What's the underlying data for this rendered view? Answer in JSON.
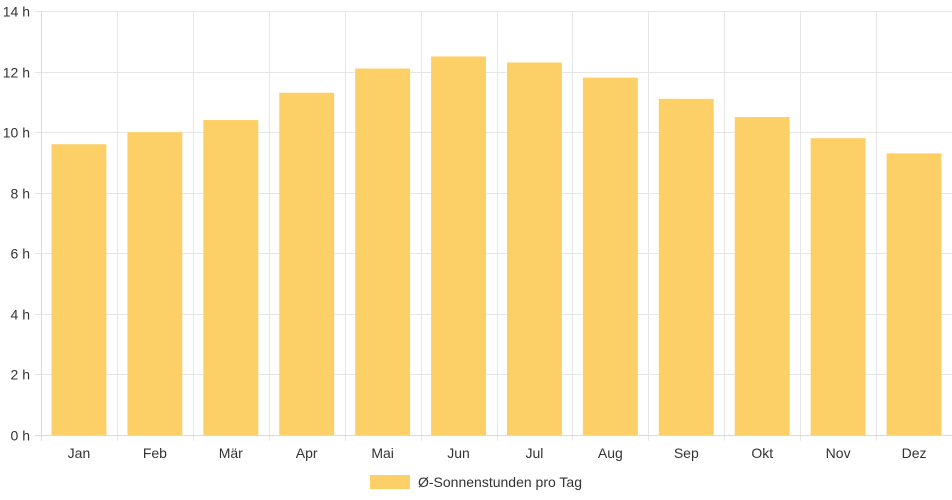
{
  "chart_data": {
    "type": "bar",
    "categories": [
      "Jan",
      "Feb",
      "Mär",
      "Apr",
      "Mai",
      "Jun",
      "Jul",
      "Aug",
      "Sep",
      "Okt",
      "Nov",
      "Dez"
    ],
    "series": [
      {
        "name": "Ø-Sonnenstunden pro Tag",
        "values": [
          9.6,
          10.0,
          10.4,
          11.3,
          12.1,
          12.5,
          12.3,
          11.8,
          11.1,
          10.5,
          9.8,
          9.3
        ],
        "color": "#fdd067"
      }
    ],
    "ylim": [
      0,
      14
    ],
    "yticks": [
      0,
      2,
      4,
      6,
      8,
      10,
      12,
      14
    ],
    "ytick_suffix": " h",
    "grid": true,
    "legend": "bottom"
  },
  "colors": {
    "grid": "#e6e6e6",
    "text": "#333333",
    "bar": "#fdd067"
  }
}
